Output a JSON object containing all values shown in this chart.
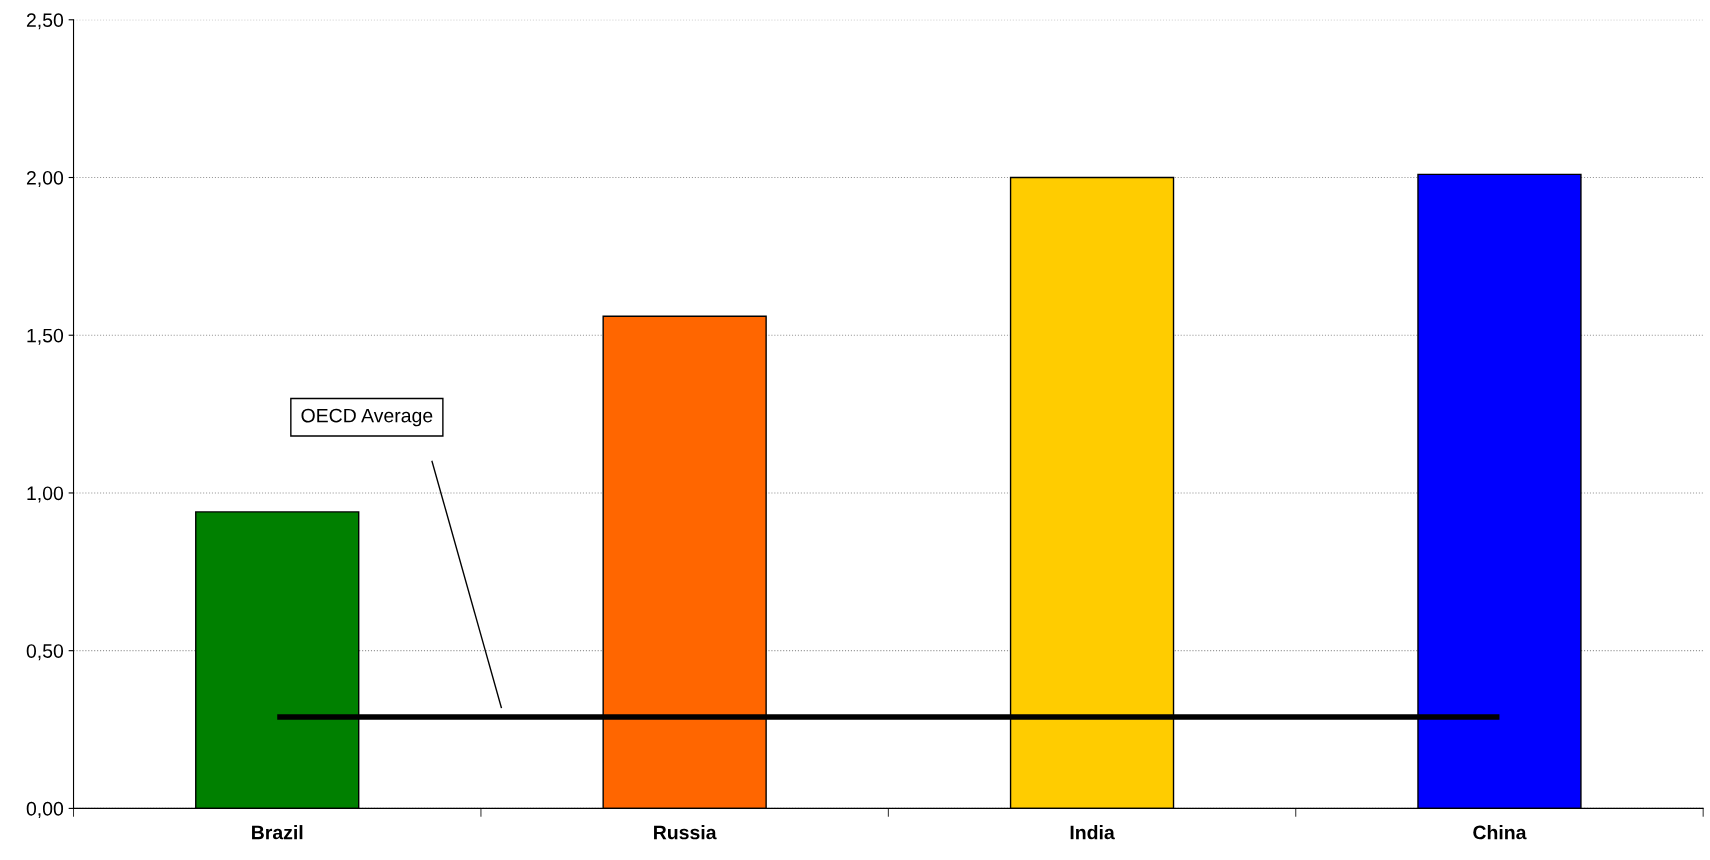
{
  "chart_data": {
    "type": "bar",
    "categories": [
      "Brazil",
      "Russia",
      "India",
      "China"
    ],
    "values": [
      0.94,
      1.56,
      2.0,
      2.01
    ],
    "colors": [
      "#008000",
      "#ff6600",
      "#ffcc00",
      "#0000ff"
    ],
    "ylim": [
      0,
      2.5
    ],
    "yticks": [
      {
        "value": 0,
        "label": "0,00"
      },
      {
        "value": 0.5,
        "label": "0,50"
      },
      {
        "value": 1,
        "label": "1,00"
      },
      {
        "value": 1.5,
        "label": "1,50"
      },
      {
        "value": 2,
        "label": "2,00"
      },
      {
        "value": 2.5,
        "label": "2,50"
      }
    ],
    "grid": "y",
    "legend": false,
    "ref_lines": [
      {
        "axis": "y",
        "value": 0.29,
        "label": "OECD Average",
        "color": "#000000",
        "line_style": "solid"
      }
    ]
  }
}
